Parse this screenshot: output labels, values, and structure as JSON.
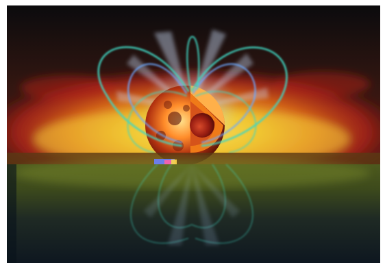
{
  "image": {
    "subject-icon": "star-with-magnetic-field-icon",
    "colors": {
      "sky_dark": "#0b0b0d",
      "disk_red": "#b32218",
      "disk_orange": "#e46a19",
      "disk_yellow": "#f3c62b",
      "star_core": "#ffb04a",
      "star_surface": "#b0300f",
      "field_lines": "#3fd6c2",
      "field_lines_blue": "#6aa8ff",
      "jet_blue": "#b6d7ff",
      "lower_band": "#4d5a1e",
      "lower_shadow": "#0e1720"
    }
  }
}
